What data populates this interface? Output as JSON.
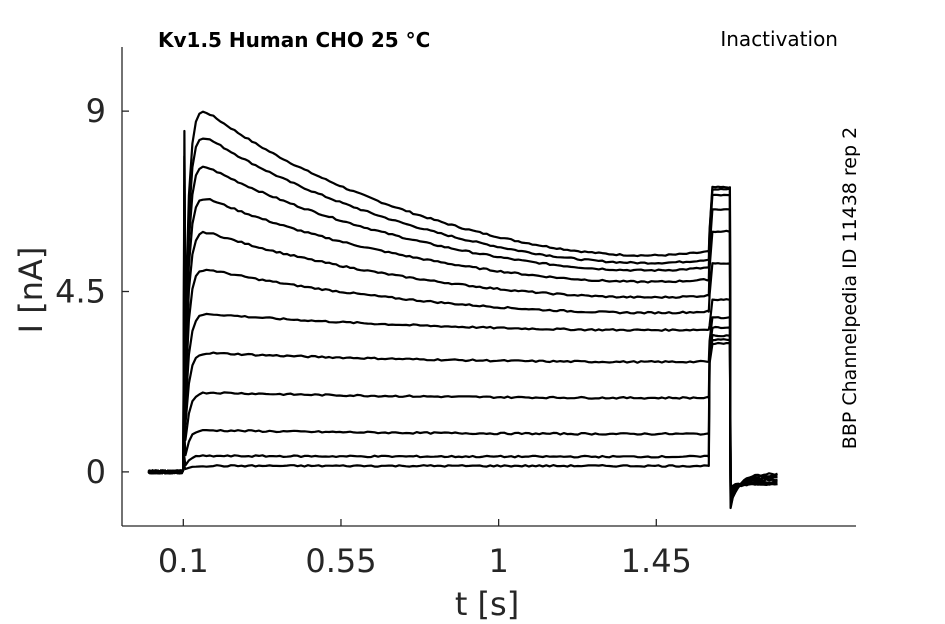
{
  "chart_data": {
    "type": "line",
    "title": "Kv1.5  Human  CHO  25 °C",
    "protocol": "Inactivation",
    "source": "BBP Channelpedia ID 11438 rep 2",
    "xlabel": "t [s]",
    "ylabel": "I [nA]",
    "xlim": [
      -0.075,
      2.02
    ],
    "ylim": [
      -1.35,
      10.6
    ],
    "xticks": [
      0.1,
      0.55,
      1,
      1.45
    ],
    "xtick_labels": [
      "0.1",
      "0.55",
      "1",
      "1.45"
    ],
    "yticks": [
      0,
      4.5,
      9
    ],
    "ytick_labels": [
      "0",
      "4.5",
      "9"
    ],
    "grid": false,
    "legend": "none",
    "color": "#000000",
    "time_points_s": {
      "baseline_start": 0.0,
      "step_on": 0.1,
      "step_off": 1.6,
      "tail_end": 1.66,
      "trace_end": 1.8
    },
    "series": [
      {
        "peak": 9.45,
        "end_step": 5.5,
        "tail_start": 7.1,
        "tail_min": -0.9,
        "tail_end": -0.05
      },
      {
        "peak": 8.75,
        "end_step": 5.3,
        "tail_start": 7.05,
        "tail_min": -0.85,
        "tail_end": -0.1
      },
      {
        "peak": 7.95,
        "end_step": 5.1,
        "tail_start": 6.9,
        "tail_min": -0.8,
        "tail_end": -0.1
      },
      {
        "peak": 7.1,
        "end_step": 4.8,
        "tail_start": 6.55,
        "tail_min": -0.75,
        "tail_end": -0.15
      },
      {
        "peak": 6.2,
        "end_step": 4.4,
        "tail_start": 6.0,
        "tail_min": -0.7,
        "tail_end": -0.15
      },
      {
        "peak": 5.2,
        "end_step": 4.0,
        "tail_start": 5.2,
        "tail_min": -0.65,
        "tail_end": -0.2
      },
      {
        "peak": 4.0,
        "end_step": 3.55,
        "tail_start": 4.3,
        "tail_min": -0.6,
        "tail_end": -0.2
      },
      {
        "peak": 3.0,
        "end_step": 2.75,
        "tail_start": 3.85,
        "tail_min": -0.55,
        "tail_end": -0.25
      },
      {
        "peak": 2.0,
        "end_step": 1.85,
        "tail_start": 3.6,
        "tail_min": -0.5,
        "tail_end": -0.25
      },
      {
        "peak": 1.05,
        "end_step": 0.95,
        "tail_start": 3.4,
        "tail_min": -0.45,
        "tail_end": -0.3
      },
      {
        "peak": 0.4,
        "end_step": 0.38,
        "tail_start": 3.3,
        "tail_min": -0.4,
        "tail_end": -0.3
      },
      {
        "peak": 0.15,
        "end_step": 0.15,
        "tail_start": 3.2,
        "tail_min": -0.35,
        "tail_end": -0.3
      }
    ]
  }
}
